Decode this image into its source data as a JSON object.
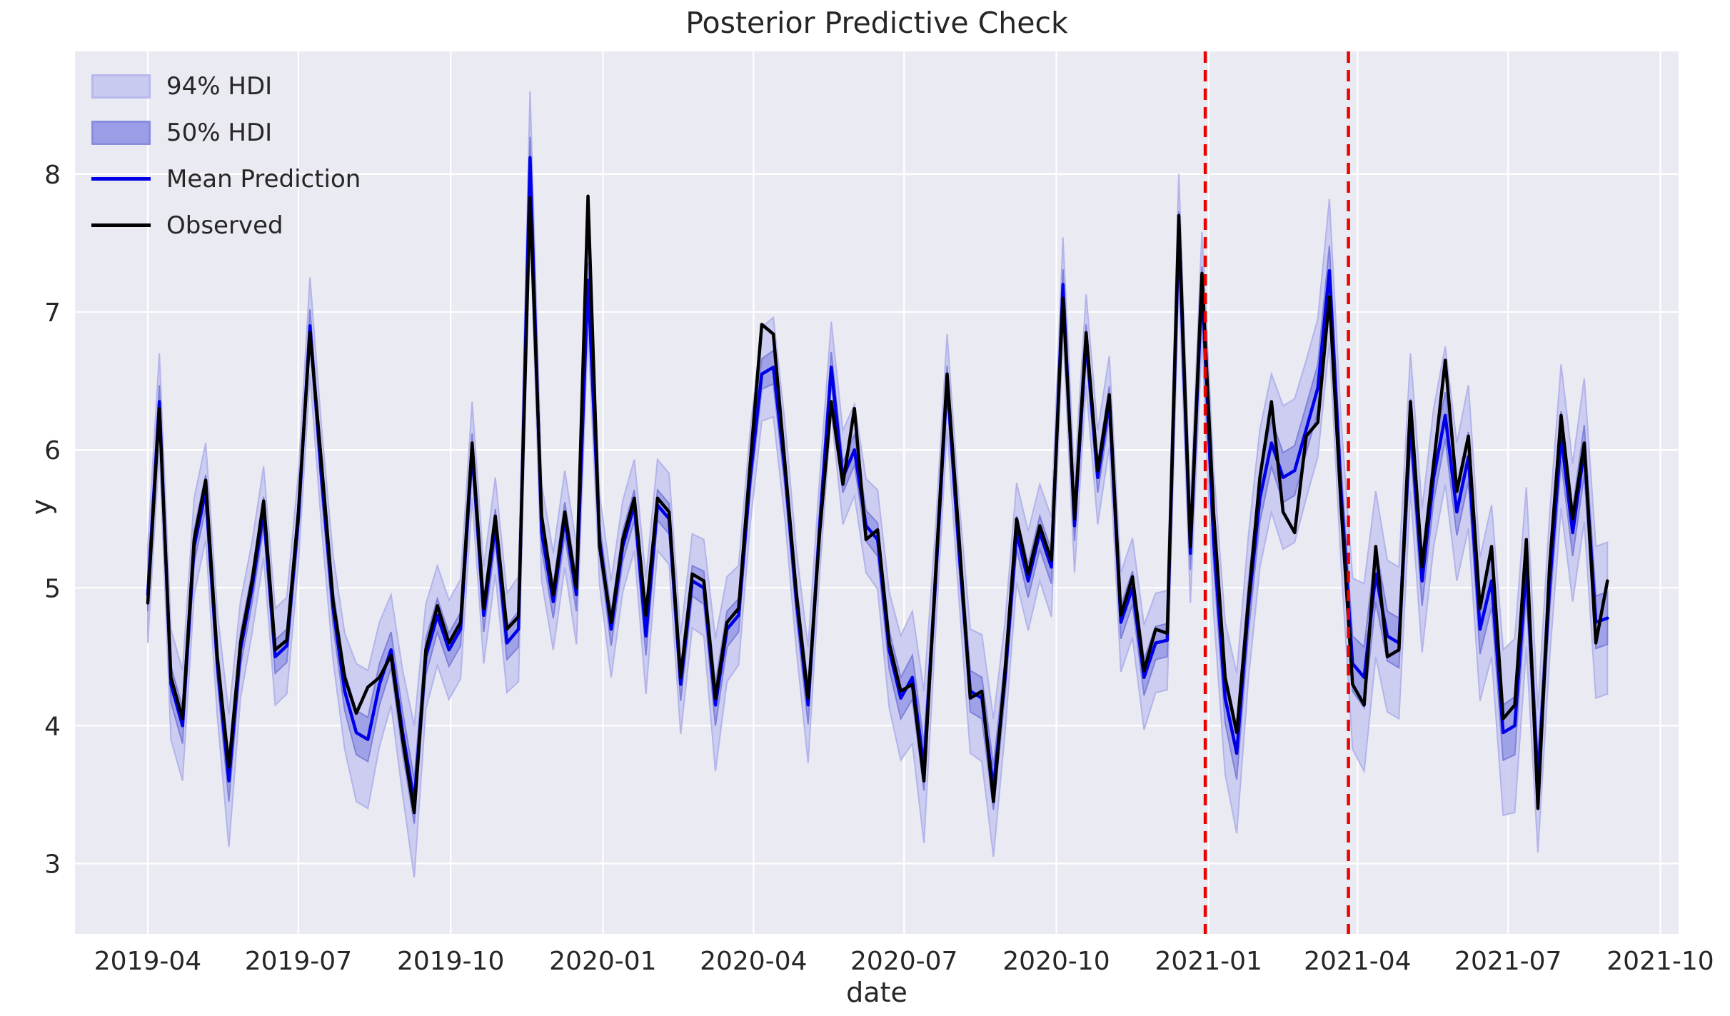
{
  "figure": {
    "title": "Posterior Predictive Check",
    "xlabel": "date",
    "ylabel": "y"
  },
  "legend": {
    "items": [
      {
        "label": "94% HDI",
        "type": "band",
        "color": "#c9caf0"
      },
      {
        "label": "50% HDI",
        "type": "band",
        "color": "#9b9de7"
      },
      {
        "label": "Mean Prediction",
        "type": "line",
        "color": "#0000e6"
      },
      {
        "label": "Observed",
        "type": "line",
        "color": "#000000"
      }
    ]
  },
  "colors": {
    "figure_background": "#ffffff",
    "axes_background": "#eaeaf2",
    "grid": "#ffffff",
    "text": "#262626",
    "observed": "#000000",
    "mean_prediction": "#0000e6",
    "hdi94_fill": "#c9caf0",
    "hdi94_edge": "#b2b4ea",
    "hdi50_fill": "#9b9de7",
    "hdi50_edge": "#8082da",
    "cutoff_line": "#ed0000"
  },
  "chart_data": {
    "type": "line",
    "title": "Posterior Predictive Check",
    "xlabel": "date",
    "ylabel": "y",
    "x_start_date": "2019-04-01",
    "x_step_days": 7,
    "n_points": 127,
    "xlim_days": [
      -44,
      925
    ],
    "ylim": [
      2.49,
      8.89
    ],
    "grid": true,
    "legend_position": "upper left",
    "x_tick_days": [
      0,
      91,
      183,
      275,
      366,
      457,
      549,
      641,
      731,
      822,
      914
    ],
    "x_tick_labels": [
      "2019-04",
      "2019-07",
      "2019-10",
      "2020-01",
      "2020-04",
      "2020-07",
      "2020-10",
      "2021-01",
      "2021-04",
      "2021-07",
      "2021-10"
    ],
    "y_ticks": [
      3,
      4,
      5,
      6,
      7,
      8
    ],
    "vlines": {
      "days": [
        639,
        725.5
      ],
      "color": "#ed0000",
      "style": "dashed"
    },
    "series": [
      {
        "name": "Observed",
        "color": "#000000",
        "values": [
          4.89,
          6.3,
          4.35,
          4.05,
          5.35,
          5.78,
          4.5,
          3.7,
          4.6,
          5.05,
          5.63,
          4.55,
          4.62,
          5.55,
          6.85,
          5.9,
          4.9,
          4.35,
          4.09,
          4.28,
          4.35,
          4.51,
          3.9,
          3.37,
          4.55,
          4.87,
          4.6,
          4.75,
          6.05,
          4.85,
          5.52,
          4.7,
          4.79,
          7.83,
          5.52,
          4.95,
          5.55,
          5.0,
          7.84,
          5.3,
          4.75,
          5.35,
          5.65,
          4.8,
          5.65,
          5.55,
          4.35,
          5.1,
          5.05,
          4.2,
          4.75,
          4.85,
          5.9,
          6.91,
          6.84,
          5.9,
          4.95,
          4.2,
          5.4,
          6.35,
          5.75,
          6.3,
          5.35,
          5.42,
          4.6,
          4.25,
          4.3,
          3.6,
          5.1,
          6.55,
          5.4,
          4.2,
          4.25,
          3.45,
          4.4,
          5.5,
          5.1,
          5.45,
          5.2,
          7.1,
          5.5,
          6.85,
          5.85,
          6.4,
          4.8,
          5.08,
          4.4,
          4.7,
          4.67,
          7.7,
          5.3,
          7.28,
          5.55,
          4.35,
          3.95,
          4.9,
          5.8,
          6.35,
          5.55,
          5.4,
          6.1,
          6.2,
          7.11,
          5.6,
          4.3,
          4.15,
          5.3,
          4.5,
          4.55,
          6.35,
          5.15,
          5.9,
          6.65,
          5.7,
          6.1,
          4.85,
          5.3,
          4.05,
          4.15,
          5.35,
          3.4,
          5.15,
          6.25,
          5.5,
          6.05,
          4.6,
          5.05
        ]
      },
      {
        "name": "Mean Prediction",
        "color": "#0000e6",
        "values": [
          4.95,
          6.35,
          4.3,
          4.0,
          5.3,
          5.7,
          4.45,
          3.6,
          4.55,
          5.0,
          5.55,
          4.5,
          4.58,
          5.5,
          6.9,
          5.8,
          4.85,
          4.25,
          3.95,
          3.9,
          4.3,
          4.55,
          3.95,
          3.45,
          4.5,
          4.8,
          4.55,
          4.7,
          6.0,
          4.8,
          5.45,
          4.6,
          4.7,
          8.12,
          5.4,
          4.9,
          5.5,
          4.95,
          7.23,
          5.35,
          4.7,
          5.3,
          5.6,
          4.65,
          5.6,
          5.5,
          4.3,
          5.05,
          5.0,
          4.15,
          4.7,
          4.8,
          5.8,
          6.55,
          6.6,
          5.85,
          4.9,
          4.15,
          5.45,
          6.6,
          5.8,
          6.0,
          5.45,
          5.35,
          4.55,
          4.2,
          4.35,
          3.7,
          5.05,
          6.5,
          5.3,
          4.25,
          4.2,
          3.55,
          4.35,
          5.4,
          5.05,
          5.4,
          5.15,
          7.2,
          5.45,
          6.8,
          5.8,
          6.35,
          4.75,
          5.0,
          4.35,
          4.6,
          4.62,
          7.6,
          5.25,
          7.2,
          5.35,
          4.2,
          3.8,
          4.85,
          5.65,
          6.05,
          5.8,
          5.85,
          6.15,
          6.45,
          7.3,
          5.7,
          4.45,
          4.35,
          5.1,
          4.65,
          4.6,
          6.2,
          5.05,
          5.8,
          6.25,
          5.55,
          5.95,
          4.7,
          5.05,
          3.95,
          4.0,
          5.15,
          3.6,
          5.0,
          6.1,
          5.4,
          6.0,
          4.75,
          4.78
        ]
      }
    ],
    "hdi_bands": [
      {
        "name": "94% HDI",
        "around_series": "Mean Prediction",
        "fill": "#c9caf0",
        "half_width": [
          0.35,
          0.35,
          0.4,
          0.4,
          0.35,
          0.35,
          0.38,
          0.48,
          0.35,
          0.33,
          0.33,
          0.35,
          0.35,
          0.33,
          0.35,
          0.36,
          0.38,
          0.42,
          0.5,
          0.5,
          0.45,
          0.4,
          0.45,
          0.55,
          0.38,
          0.36,
          0.36,
          0.36,
          0.35,
          0.35,
          0.35,
          0.36,
          0.38,
          0.48,
          0.35,
          0.35,
          0.35,
          0.36,
          0.36,
          0.33,
          0.35,
          0.33,
          0.33,
          0.42,
          0.33,
          0.33,
          0.36,
          0.34,
          0.35,
          0.48,
          0.38,
          0.36,
          0.34,
          0.34,
          0.36,
          0.35,
          0.36,
          0.42,
          0.35,
          0.33,
          0.34,
          0.33,
          0.34,
          0.36,
          0.42,
          0.45,
          0.48,
          0.55,
          0.38,
          0.34,
          0.36,
          0.45,
          0.46,
          0.5,
          0.4,
          0.36,
          0.36,
          0.35,
          0.36,
          0.34,
          0.34,
          0.33,
          0.34,
          0.33,
          0.36,
          0.36,
          0.38,
          0.36,
          0.36,
          0.4,
          0.36,
          0.38,
          0.52,
          0.55,
          0.58,
          0.52,
          0.5,
          0.5,
          0.52,
          0.52,
          0.5,
          0.5,
          0.52,
          0.52,
          0.62,
          0.68,
          0.6,
          0.55,
          0.55,
          0.5,
          0.52,
          0.5,
          0.5,
          0.5,
          0.52,
          0.52,
          0.55,
          0.6,
          0.63,
          0.58,
          0.52,
          0.52,
          0.52,
          0.5,
          0.52,
          0.55,
          0.55
        ]
      },
      {
        "name": "50% HDI",
        "around_series": "Mean Prediction",
        "fill": "#9b9de7",
        "half_width": [
          0.12,
          0.12,
          0.13,
          0.13,
          0.12,
          0.12,
          0.12,
          0.15,
          0.12,
          0.11,
          0.11,
          0.12,
          0.12,
          0.11,
          0.12,
          0.12,
          0.13,
          0.14,
          0.16,
          0.16,
          0.15,
          0.13,
          0.15,
          0.16,
          0.13,
          0.12,
          0.12,
          0.12,
          0.12,
          0.12,
          0.12,
          0.12,
          0.13,
          0.15,
          0.12,
          0.12,
          0.12,
          0.12,
          0.13,
          0.11,
          0.12,
          0.11,
          0.11,
          0.14,
          0.11,
          0.11,
          0.12,
          0.11,
          0.12,
          0.15,
          0.13,
          0.12,
          0.11,
          0.11,
          0.12,
          0.12,
          0.12,
          0.14,
          0.12,
          0.11,
          0.11,
          0.11,
          0.11,
          0.12,
          0.14,
          0.15,
          0.16,
          0.17,
          0.13,
          0.11,
          0.12,
          0.15,
          0.15,
          0.16,
          0.13,
          0.12,
          0.12,
          0.12,
          0.12,
          0.11,
          0.11,
          0.11,
          0.11,
          0.11,
          0.12,
          0.12,
          0.13,
          0.12,
          0.12,
          0.13,
          0.12,
          0.13,
          0.18,
          0.18,
          0.19,
          0.18,
          0.17,
          0.17,
          0.18,
          0.18,
          0.17,
          0.17,
          0.18,
          0.18,
          0.2,
          0.22,
          0.2,
          0.18,
          0.18,
          0.17,
          0.18,
          0.17,
          0.17,
          0.17,
          0.18,
          0.18,
          0.19,
          0.2,
          0.21,
          0.2,
          0.18,
          0.18,
          0.18,
          0.17,
          0.18,
          0.19,
          0.19
        ]
      }
    ]
  }
}
